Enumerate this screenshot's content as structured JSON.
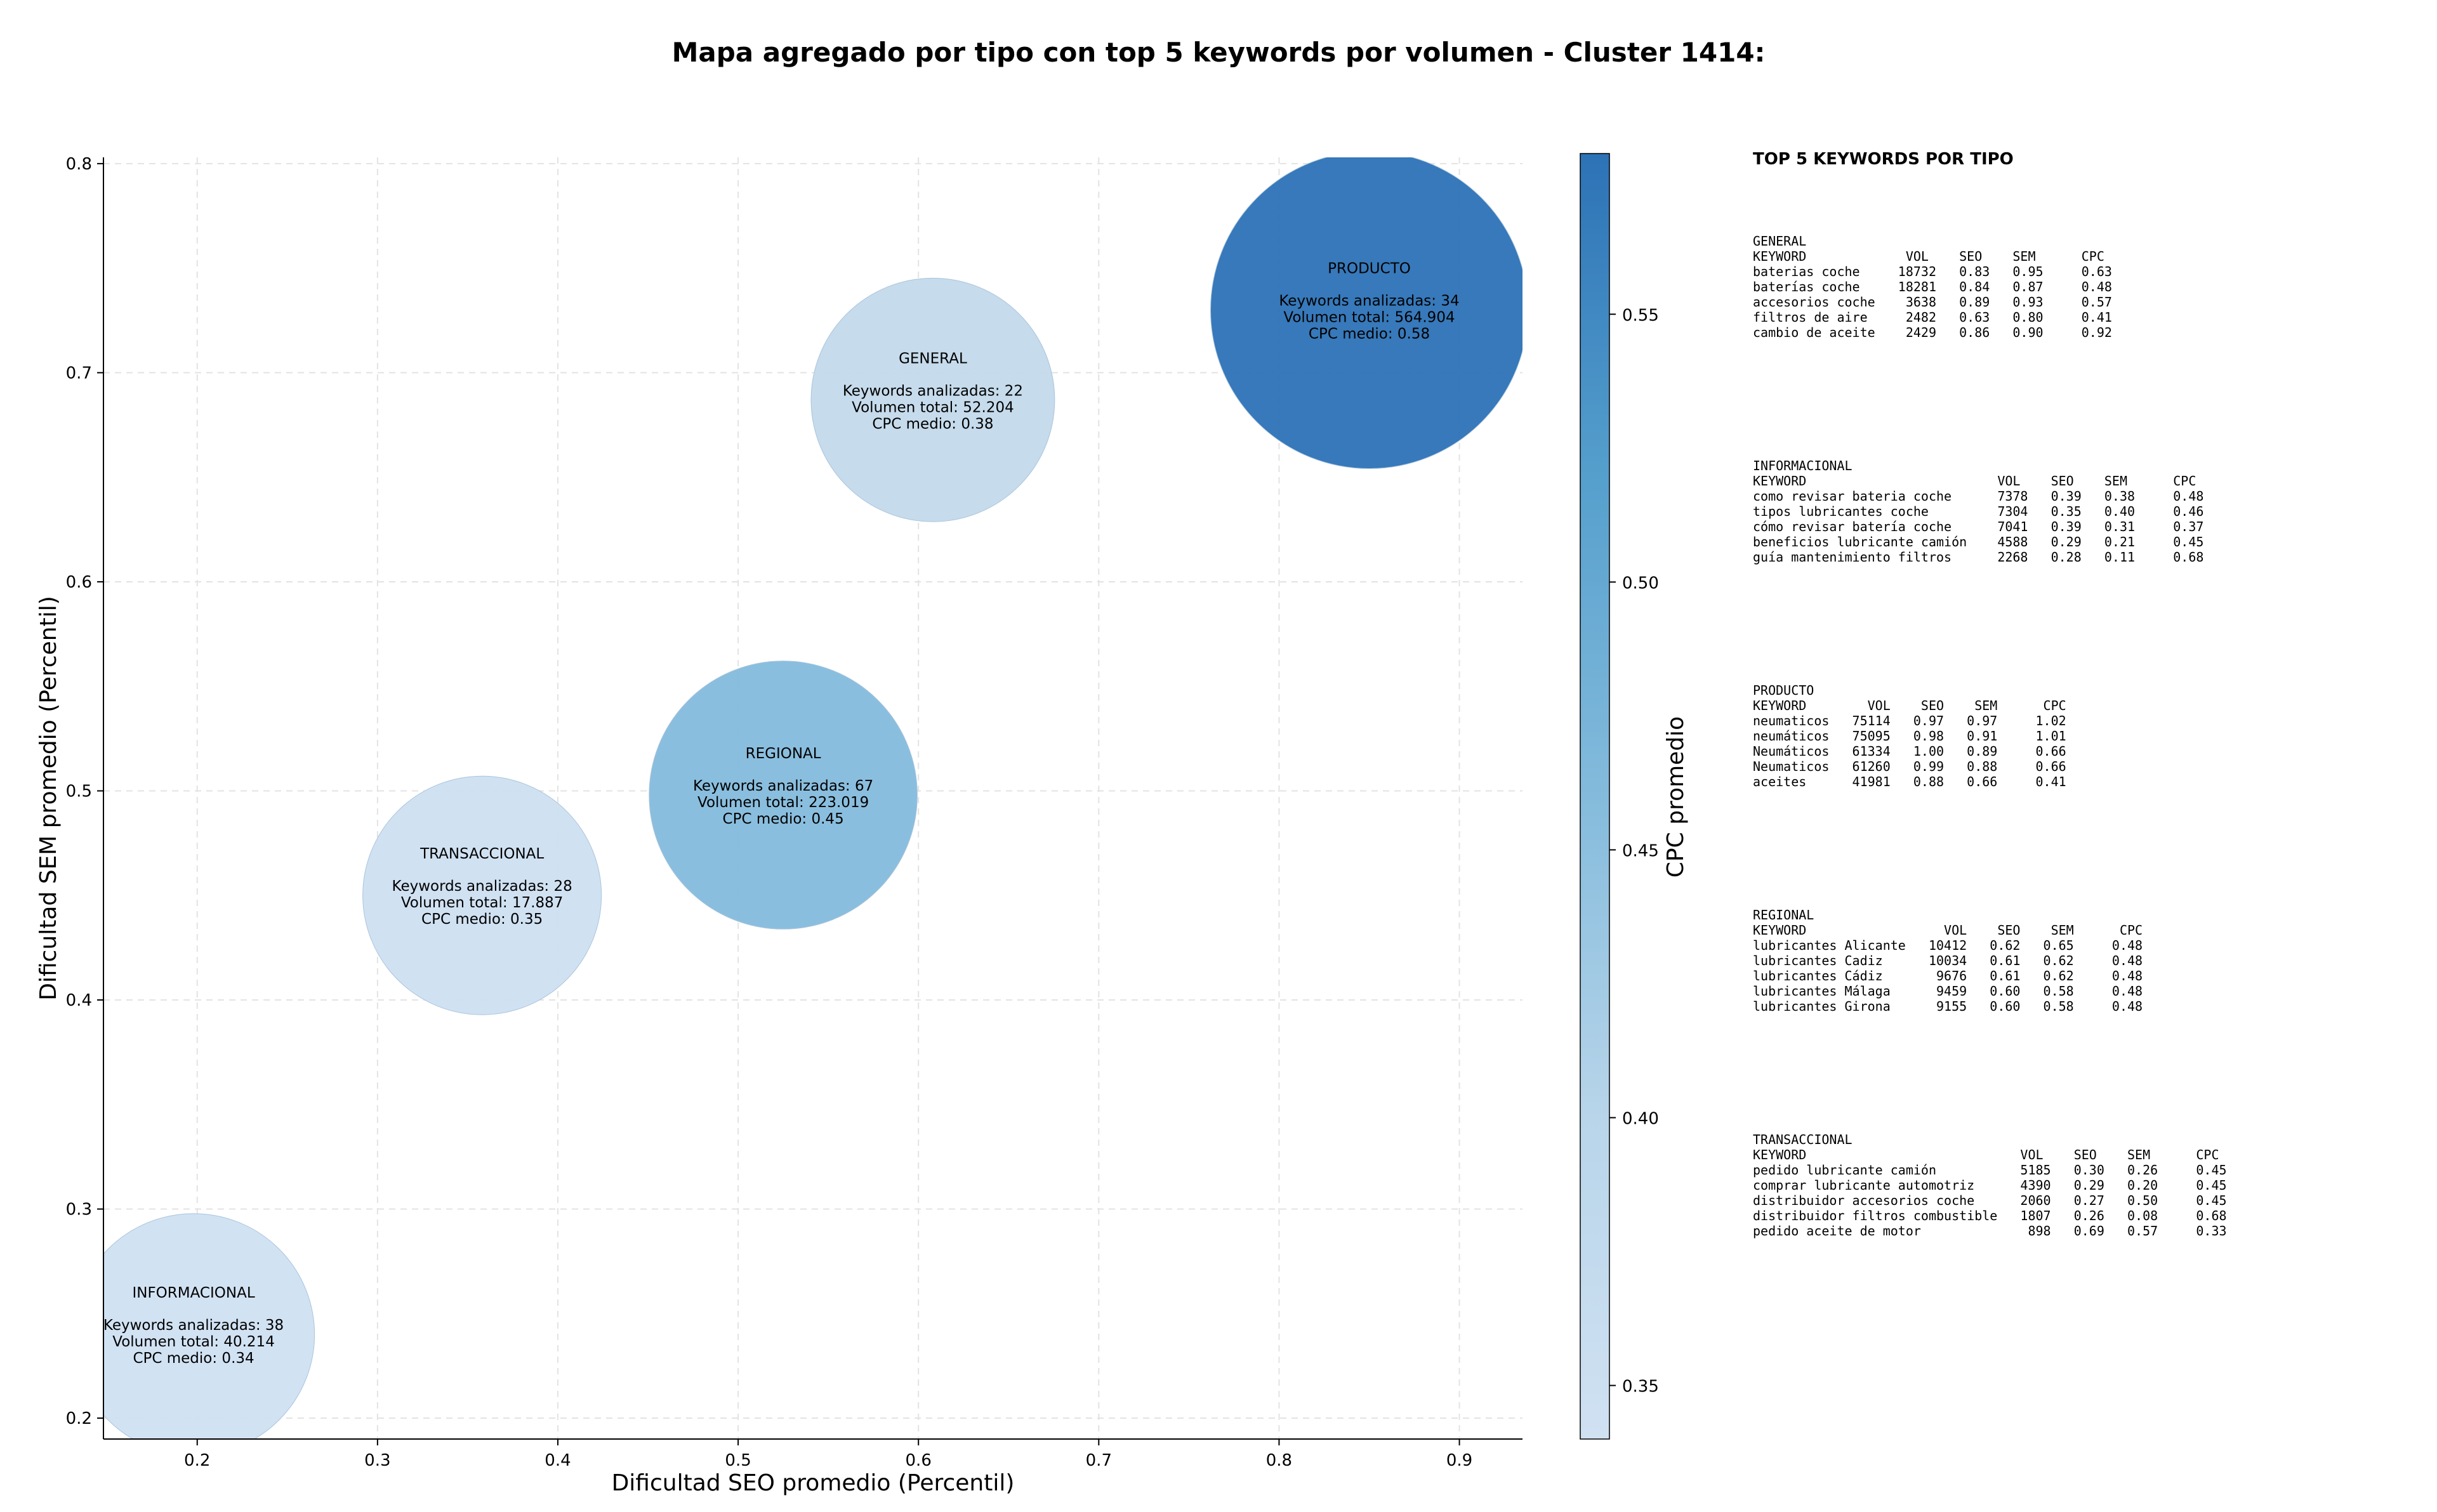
{
  "figure": {
    "title": "Mapa agregado por tipo con top 5 keywords por volumen - Cluster 1414:"
  },
  "chart_data": {
    "type": "scatter",
    "variant": "bubble",
    "xlabel": "Dificultad SEO promedio (Percentil)",
    "ylabel": "Dificultad SEM promedio (Percentil)",
    "xlim": [
      0.148,
      0.935
    ],
    "ylim": [
      0.19,
      0.803
    ],
    "xticks": [
      0.2,
      0.3,
      0.4,
      0.5,
      0.6,
      0.7,
      0.8,
      0.9
    ],
    "yticks": [
      0.2,
      0.3,
      0.4,
      0.5,
      0.6,
      0.7,
      0.8
    ],
    "x_tick_labels": [
      "0.2",
      "0.3",
      "0.4",
      "0.5",
      "0.6",
      "0.7",
      "0.8",
      "0.9"
    ],
    "y_tick_labels": [
      "0.2",
      "0.3",
      "0.4",
      "0.5",
      "0.6",
      "0.7",
      "0.8"
    ],
    "grid": true,
    "colorbar": {
      "label": "CPC promedio",
      "range": [
        0.34,
        0.58
      ],
      "ticks": [
        0.35,
        0.4,
        0.45,
        0.5,
        0.55
      ],
      "tick_labels": [
        "0.35",
        "0.40",
        "0.45",
        "0.50",
        "0.55"
      ],
      "colormap": "Blues",
      "color_low": "#cfe0f2",
      "color_high": "#2c72b6"
    },
    "points": [
      {
        "name": "INFORMACIONAL",
        "x": 0.198,
        "y": 0.24,
        "size_label": "Keywords analizadas: 38",
        "volume_label": "Volumen total: 40.214",
        "cpc_label": "CPC medio: 0.34",
        "cpc": 0.34,
        "volume": 40214,
        "fill": "#cfe0f2"
      },
      {
        "name": "TRANSACCIONAL",
        "x": 0.358,
        "y": 0.45,
        "size_label": "Keywords analizadas: 28",
        "volume_label": "Volumen total: 17.887",
        "cpc_label": "CPC medio: 0.35",
        "cpc": 0.35,
        "volume": 17887,
        "fill": "#cddff1"
      },
      {
        "name": "REGIONAL",
        "x": 0.525,
        "y": 0.498,
        "size_label": "Keywords analizadas: 67",
        "volume_label": "Volumen total: 223.019",
        "cpc_label": "CPC medio: 0.45",
        "cpc": 0.45,
        "volume": 223019,
        "fill": "#84bbdc"
      },
      {
        "name": "GENERAL",
        "x": 0.608,
        "y": 0.687,
        "size_label": "Keywords analizadas: 22",
        "volume_label": "Volumen total: 52.204",
        "cpc_label": "CPC medio: 0.38",
        "cpc": 0.38,
        "volume": 52204,
        "fill": "#c3d9ea"
      },
      {
        "name": "PRODUCTO",
        "x": 0.85,
        "y": 0.73,
        "size_label": "Keywords analizadas: 34",
        "volume_label": "Volumen total: 564.904",
        "cpc_label": "CPC medio: 0.58",
        "cpc": 0.58,
        "volume": 564904,
        "fill": "#2c72b6"
      }
    ]
  },
  "side_panel": {
    "title": "TOP 5 KEYWORDS POR TIPO",
    "blocks": [
      {
        "type": "GENERAL",
        "header": "KEYWORD             VOL    SEO    SEM      CPC",
        "rows": [
          "baterias coche     18732   0.83   0.95     0.63",
          "baterías coche     18281   0.84   0.87     0.48",
          "accesorios coche    3638   0.89   0.93     0.57",
          "filtros de aire     2482   0.63   0.80     0.41",
          "cambio de aceite    2429   0.86   0.90     0.92"
        ]
      },
      {
        "type": "INFORMACIONAL",
        "header": "KEYWORD                         VOL    SEO    SEM      CPC",
        "rows": [
          "como revisar bateria coche      7378   0.39   0.38     0.48",
          "tipos lubricantes coche         7304   0.35   0.40     0.46",
          "cómo revisar batería coche      7041   0.39   0.31     0.37",
          "beneficios lubricante camión    4588   0.29   0.21     0.45",
          "guía mantenimiento filtros      2268   0.28   0.11     0.68"
        ]
      },
      {
        "type": "PRODUCTO",
        "header": "KEYWORD        VOL    SEO    SEM      CPC",
        "rows": [
          "neumaticos   75114   0.97   0.97     1.02",
          "neumáticos   75095   0.98   0.91     1.01",
          "Neumáticos   61334   1.00   0.89     0.66",
          "Neumaticos   61260   0.99   0.88     0.66",
          "aceites      41981   0.88   0.66     0.41"
        ]
      },
      {
        "type": "REGIONAL",
        "header": "KEYWORD                  VOL    SEO    SEM      CPC",
        "rows": [
          "lubricantes Alicante   10412   0.62   0.65     0.48",
          "lubricantes Cadiz      10034   0.61   0.62     0.48",
          "lubricantes Cádiz       9676   0.61   0.62     0.48",
          "lubricantes Málaga      9459   0.60   0.58     0.48",
          "lubricantes Girona      9155   0.60   0.58     0.48"
        ]
      },
      {
        "type": "TRANSACCIONAL",
        "header": "KEYWORD                            VOL    SEO    SEM      CPC",
        "rows": [
          "pedido lubricante camión           5185   0.30   0.26     0.45",
          "comprar lubricante automotriz      4390   0.29   0.20     0.45",
          "distribuidor accesorios coche      2060   0.27   0.50     0.45",
          "distribuidor filtros combustible   1807   0.26   0.08     0.68",
          "pedido aceite de motor              898   0.69   0.57     0.33"
        ]
      }
    ]
  }
}
